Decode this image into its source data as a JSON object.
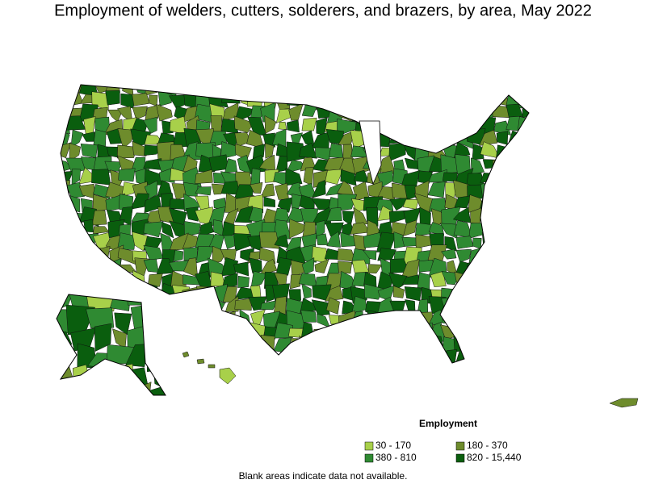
{
  "title": "Employment of welders, cutters, solderers, and brazers, by area, May 2022",
  "legend": {
    "title": "Employment",
    "items": [
      {
        "label": "30 - 170",
        "color": "#a8d04a"
      },
      {
        "label": "180 - 370",
        "color": "#6e8c2c"
      },
      {
        "label": "380 - 810",
        "color": "#2f8a32"
      },
      {
        "label": "820 - 15,440",
        "color": "#0a5e0e"
      }
    ]
  },
  "footnote": "Blank areas indicate data not available."
}
